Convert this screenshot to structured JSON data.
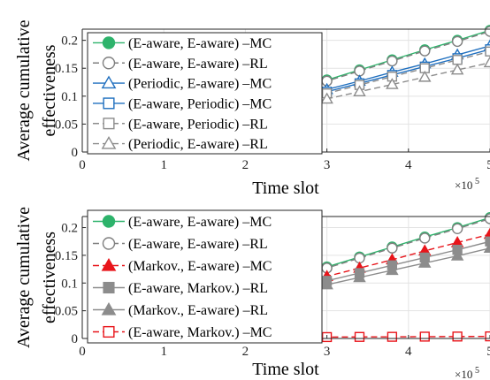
{
  "chart_data": [
    {
      "type": "line",
      "xlabel": "Time slot",
      "ylabel": "Average cumulative effectiveness",
      "x_exponent_label": "×10",
      "x_exponent_power": "5",
      "xlim": [
        0,
        5
      ],
      "ylim": [
        0,
        0.22
      ],
      "x_ticks": [
        0,
        1,
        2,
        3,
        4,
        5
      ],
      "x_tick_labels": [
        "0",
        "1",
        "2",
        "3",
        "4",
        "5"
      ],
      "y_ticks": [
        0,
        0.05,
        0.1,
        0.15,
        0.2
      ],
      "y_tick_labels": [
        "0",
        "0.05",
        "0.1",
        "0.15",
        "0.2"
      ],
      "grid": true,
      "legend_position": "top-left",
      "x": [
        0.2,
        0.6,
        1.0,
        1.4,
        1.8,
        2.2,
        2.6,
        3.0,
        3.4,
        3.8,
        4.2,
        4.6,
        5.0
      ],
      "series": [
        {
          "name": "(E-aware, E-aware) –MC",
          "color": "#2db36b",
          "marker": "circle",
          "filled": true,
          "dash": false,
          "values": [
            0.008,
            0.025,
            0.042,
            0.059,
            0.076,
            0.093,
            0.111,
            0.129,
            0.147,
            0.165,
            0.183,
            0.2,
            0.218
          ]
        },
        {
          "name": "(E-aware, E-aware) –RL",
          "color": "#7f7f7f",
          "marker": "circle",
          "filled": false,
          "dash": true,
          "values": [
            0.008,
            0.024,
            0.041,
            0.058,
            0.075,
            0.092,
            0.109,
            0.127,
            0.145,
            0.163,
            0.181,
            0.198,
            0.216
          ]
        },
        {
          "name": "(Periodic, E-aware) –MC",
          "color": "#1f6fbf",
          "marker": "triangle",
          "filled": false,
          "dash": false,
          "values": [
            0.007,
            0.022,
            0.037,
            0.052,
            0.067,
            0.082,
            0.097,
            0.112,
            0.127,
            0.143,
            0.158,
            0.174,
            0.19
          ]
        },
        {
          "name": "(E-aware, Periodic) –MC",
          "color": "#1f6fbf",
          "marker": "square",
          "filled": false,
          "dash": false,
          "values": [
            0.007,
            0.021,
            0.036,
            0.05,
            0.065,
            0.079,
            0.094,
            0.108,
            0.123,
            0.138,
            0.153,
            0.168,
            0.184
          ]
        },
        {
          "name": "(E-aware, Periodic) –RL",
          "color": "#8c8c8c",
          "marker": "square",
          "filled": false,
          "dash": true,
          "values": [
            0.007,
            0.021,
            0.035,
            0.049,
            0.063,
            0.077,
            0.091,
            0.105,
            0.12,
            0.135,
            0.15,
            0.165,
            0.18
          ]
        },
        {
          "name": "(Periodic, E-aware) –RL",
          "color": "#8c8c8c",
          "marker": "triangle",
          "filled": false,
          "dash": true,
          "values": [
            0.006,
            0.019,
            0.032,
            0.045,
            0.057,
            0.07,
            0.083,
            0.095,
            0.108,
            0.121,
            0.134,
            0.147,
            0.16
          ]
        }
      ]
    },
    {
      "type": "line",
      "xlabel": "Time slot",
      "ylabel": "Average cumulative effectiveness",
      "x_exponent_label": "×10",
      "x_exponent_power": "5",
      "xlim": [
        0,
        5
      ],
      "ylim": [
        0,
        0.22
      ],
      "x_ticks": [
        0,
        1,
        2,
        3,
        4,
        5
      ],
      "x_tick_labels": [
        "0",
        "1",
        "2",
        "3",
        "4",
        "5"
      ],
      "y_ticks": [
        0,
        0.05,
        0.1,
        0.15,
        0.2
      ],
      "y_tick_labels": [
        "0",
        "0.05",
        "0.1",
        "0.15",
        "0.2"
      ],
      "grid": true,
      "legend_position": "top-left",
      "x": [
        0.2,
        0.6,
        1.0,
        1.4,
        1.8,
        2.2,
        2.6,
        3.0,
        3.4,
        3.8,
        4.2,
        4.6,
        5.0
      ],
      "series": [
        {
          "name": "(E-aware, E-aware) –MC",
          "color": "#2db36b",
          "marker": "circle",
          "filled": true,
          "dash": false,
          "values": [
            0.008,
            0.025,
            0.042,
            0.059,
            0.076,
            0.093,
            0.111,
            0.129,
            0.147,
            0.165,
            0.183,
            0.2,
            0.218
          ]
        },
        {
          "name": "(E-aware, E-aware) –RL",
          "color": "#7f7f7f",
          "marker": "circle",
          "filled": false,
          "dash": true,
          "values": [
            0.008,
            0.024,
            0.041,
            0.058,
            0.075,
            0.092,
            0.109,
            0.127,
            0.145,
            0.163,
            0.181,
            0.198,
            0.216
          ]
        },
        {
          "name": "(Markov., E-aware) –MC",
          "color": "#e8141a",
          "marker": "triangle",
          "filled": true,
          "dash": true,
          "values": [
            0.007,
            0.022,
            0.037,
            0.052,
            0.067,
            0.082,
            0.097,
            0.112,
            0.127,
            0.142,
            0.158,
            0.173,
            0.188
          ]
        },
        {
          "name": "(E-aware, Markov.) –RL",
          "color": "#8c8c8c",
          "marker": "square",
          "filled": true,
          "dash": false,
          "values": [
            0.007,
            0.02,
            0.034,
            0.048,
            0.062,
            0.076,
            0.09,
            0.104,
            0.118,
            0.132,
            0.146,
            0.16,
            0.175
          ]
        },
        {
          "name": "(Markov., E-aware) –RL",
          "color": "#8c8c8c",
          "marker": "triangle",
          "filled": true,
          "dash": false,
          "values": [
            0.006,
            0.019,
            0.032,
            0.045,
            0.058,
            0.071,
            0.084,
            0.097,
            0.11,
            0.123,
            0.136,
            0.149,
            0.163
          ]
        },
        {
          "name": "(E-aware, Markov.) –MC",
          "color": "#e8141a",
          "marker": "square",
          "filled": false,
          "dash": true,
          "values": [
            0.0008,
            0.001,
            0.0012,
            0.0014,
            0.0016,
            0.002,
            0.0022,
            0.0025,
            0.0028,
            0.003,
            0.0033,
            0.0035,
            0.0038
          ]
        }
      ]
    }
  ]
}
